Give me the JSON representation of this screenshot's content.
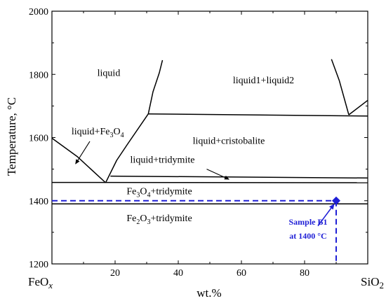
{
  "chart_data": {
    "type": "line",
    "xlabel": "wt.%",
    "ylabel": "Temperature, °C",
    "xlim": [
      0,
      100
    ],
    "ylim": [
      1200,
      2000
    ],
    "x_ticks": [
      20,
      40,
      60,
      80
    ],
    "y_ticks": [
      1200,
      1400,
      1600,
      1800,
      2000
    ],
    "x_end_labels": {
      "left_main": "FeO",
      "left_sub": "x",
      "right_main": "SiO",
      "right_sub": "2"
    },
    "grid": false,
    "phase_lines": [
      {
        "points": [
          [
            0,
            1598
          ],
          [
            8,
            1540
          ],
          [
            17,
            1457
          ]
        ]
      },
      {
        "points": [
          [
            17,
            1457
          ],
          [
            20.5,
            1528
          ],
          [
            24,
            1580
          ],
          [
            30.5,
            1675
          ]
        ]
      },
      {
        "points": [
          [
            30.5,
            1675
          ],
          [
            32,
            1745
          ],
          [
            34,
            1805
          ],
          [
            35,
            1845
          ]
        ]
      },
      {
        "points": [
          [
            30.5,
            1675
          ],
          [
            100,
            1668
          ]
        ]
      },
      {
        "points": [
          [
            18.5,
            1478
          ],
          [
            100,
            1472
          ]
        ]
      },
      {
        "points": [
          [
            0,
            1458
          ],
          [
            100,
            1457
          ]
        ]
      },
      {
        "points": [
          [
            0,
            1390
          ],
          [
            100,
            1390
          ]
        ]
      },
      {
        "points": [
          [
            88.5,
            1848
          ],
          [
            91,
            1780
          ],
          [
            94,
            1672
          ]
        ]
      },
      {
        "points": [
          [
            94,
            1672
          ],
          [
            100,
            1718
          ]
        ]
      }
    ],
    "regions": [
      {
        "main": "liquid",
        "x": 18,
        "y": 1795
      },
      {
        "main": "liquid1+liquid2",
        "x": 67,
        "y": 1772
      },
      {
        "main": "liquid+cristobalite",
        "x": 56,
        "y": 1580
      },
      {
        "main": "liquid+tridymite",
        "x": 35,
        "y": 1520
      },
      {
        "parts": [
          [
            "liquid+Fe",
            ""
          ],
          [
            "3",
            "sub"
          ],
          [
            "O",
            ""
          ],
          [
            "4",
            "sub"
          ]
        ],
        "x": 14.5,
        "y": 1610
      },
      {
        "parts": [
          [
            "Fe",
            ""
          ],
          [
            "3",
            "sub"
          ],
          [
            "O",
            ""
          ],
          [
            "4",
            "sub"
          ],
          [
            "+tridymite",
            ""
          ]
        ],
        "x": 34,
        "y": 1421
      },
      {
        "parts": [
          [
            "Fe",
            ""
          ],
          [
            "2",
            "sub"
          ],
          [
            "O",
            ""
          ],
          [
            "3",
            "sub"
          ],
          [
            "+tridymite",
            ""
          ]
        ],
        "x": 34,
        "y": 1335
      }
    ],
    "arrows": [
      {
        "from": [
          12,
          1588
        ],
        "to": [
          7.5,
          1517
        ]
      },
      {
        "from": [
          49,
          1500
        ],
        "to": [
          56,
          1468
        ]
      }
    ],
    "sample": {
      "label_line1": "Sample B1",
      "label_line2": "at 1400 °C",
      "x": 90,
      "y": 1400,
      "color": "#1f1fd6"
    }
  }
}
